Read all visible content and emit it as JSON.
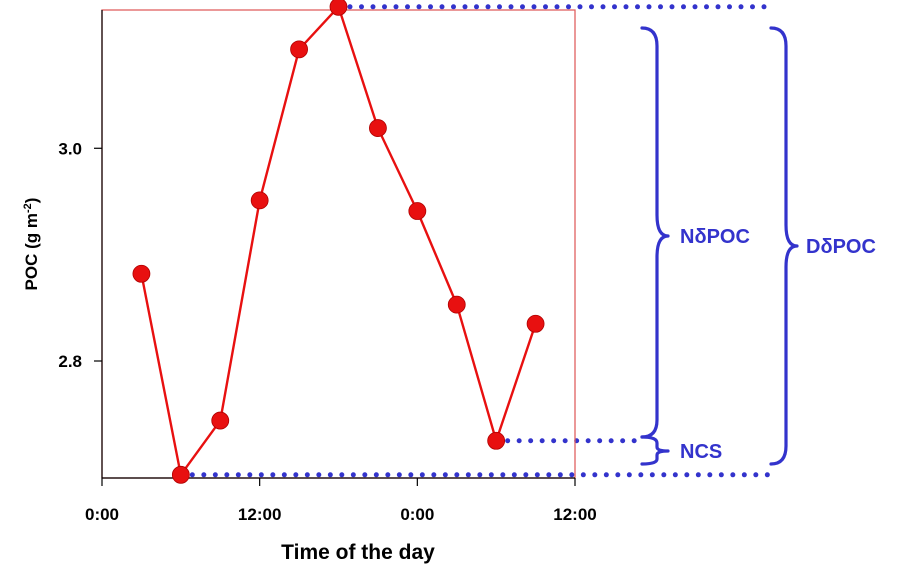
{
  "chart_data": {
    "type": "line",
    "title": "",
    "xlabel": "Time of the day",
    "ylabel": {
      "base": "POC (g m",
      "superscript": "-2",
      "close": ")"
    },
    "x_unit": "hours",
    "xlim": [
      0,
      36
    ],
    "ylim": [
      2.69,
      3.13
    ],
    "x_ticks": [
      {
        "value": 0,
        "label": "0:00"
      },
      {
        "value": 12,
        "label": "12:00"
      },
      {
        "value": 24,
        "label": "0:00"
      },
      {
        "value": 36,
        "label": "12:00"
      }
    ],
    "y_ticks": [
      {
        "value": 2.8,
        "label": "2.8"
      },
      {
        "value": 3.0,
        "label": "3.0"
      }
    ],
    "grid": false,
    "legend": "none",
    "colors": {
      "series": "#e81010",
      "frame": "#e06060",
      "annotation": "#3333cc",
      "text": "#000000"
    },
    "series": [
      {
        "x": [
          3,
          6,
          9,
          12,
          15,
          18,
          21,
          24,
          27,
          30,
          33
        ],
        "y": [
          2.882,
          2.693,
          2.744,
          2.951,
          3.093,
          3.133,
          3.019,
          2.941,
          2.853,
          2.725,
          2.835
        ]
      }
    ],
    "annotations": {
      "bracket_inner_label": "NδPOC",
      "bracket_outer_label": "DδPOC",
      "bracket_small_label": "NCS",
      "reference_levels": [
        {
          "x": 18,
          "y": 3.133
        },
        {
          "x": 30,
          "y": 2.725
        },
        {
          "x": 6,
          "y": 2.693
        }
      ]
    }
  }
}
